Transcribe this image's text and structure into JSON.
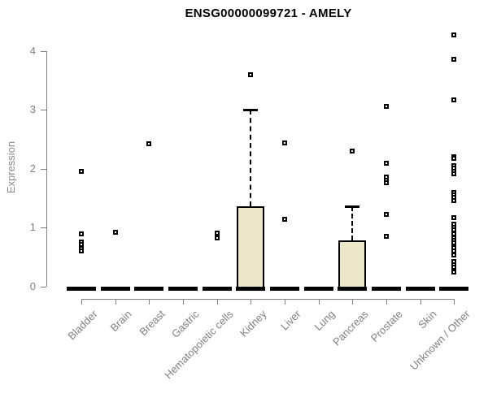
{
  "chart_data": {
    "type": "boxplot",
    "title": "ENSG00000099721 - AMELY",
    "ylabel": "Expression",
    "xlabel": "",
    "ylim": [
      0,
      4.3
    ],
    "yticks": [
      0,
      1,
      2,
      3,
      4
    ],
    "grid": false,
    "legend": false,
    "categories": [
      "Bladder",
      "Brain",
      "Breast",
      "Gastric",
      "Hematopoietic cells",
      "Kidney",
      "Liver",
      "Lung",
      "Pancreas",
      "Prostate",
      "Skin",
      "Unknown / Other"
    ],
    "series": [
      {
        "name": "Bladder",
        "median": 0,
        "q1": 0,
        "q3": 0,
        "whisker_high": 0,
        "outliers": [
          1.96,
          0.9,
          0.76,
          0.71,
          0.65,
          0.61
        ]
      },
      {
        "name": "Brain",
        "median": 0,
        "q1": 0,
        "q3": 0,
        "whisker_high": 0,
        "outliers": [
          0.92
        ]
      },
      {
        "name": "Breast",
        "median": 0,
        "q1": 0,
        "q3": 0,
        "whisker_high": 0,
        "outliers": [
          2.42
        ]
      },
      {
        "name": "Gastric",
        "median": 0,
        "q1": 0,
        "q3": 0,
        "whisker_high": 0,
        "outliers": []
      },
      {
        "name": "Hematopoietic cells",
        "median": 0,
        "q1": 0,
        "q3": 0,
        "whisker_high": 0,
        "outliers": [
          0.91,
          0.83
        ]
      },
      {
        "name": "Kidney",
        "median": 0,
        "q1": 0,
        "q3": 1.37,
        "whisker_high": 3.0,
        "outliers": [
          3.6
        ]
      },
      {
        "name": "Liver",
        "median": 0,
        "q1": 0,
        "q3": 0,
        "whisker_high": 0,
        "outliers": [
          2.44,
          1.14
        ]
      },
      {
        "name": "Lung",
        "median": 0,
        "q1": 0,
        "q3": 0,
        "whisker_high": 0,
        "outliers": []
      },
      {
        "name": "Pancreas",
        "median": 0,
        "q1": 0,
        "q3": 0.78,
        "whisker_high": 1.37,
        "outliers": [
          2.3
        ]
      },
      {
        "name": "Prostate",
        "median": 0,
        "q1": 0,
        "q3": 0,
        "whisker_high": 0,
        "outliers": [
          3.06,
          2.09,
          1.86,
          1.81,
          1.76,
          1.23,
          0.86
        ]
      },
      {
        "name": "Skin",
        "median": 0,
        "q1": 0,
        "q3": 0,
        "whisker_high": 0,
        "outliers": []
      },
      {
        "name": "Unknown / Other",
        "median": 0,
        "q1": 0,
        "q3": 0,
        "whisker_high": 0,
        "outliers": [
          4.27,
          3.86,
          3.17,
          2.21,
          2.17,
          2.05,
          2.01,
          1.96,
          1.91,
          1.6,
          1.56,
          1.51,
          1.46,
          1.17,
          1.06,
          1.01,
          0.97,
          0.9,
          0.83,
          0.79,
          0.74,
          0.66,
          0.6,
          0.54,
          0.43,
          0.37,
          0.33,
          0.25
        ]
      }
    ],
    "colors": {
      "box_fill": "#ECE7C9",
      "box_border": "#000000",
      "median": "#000000",
      "axis": "#808080",
      "tick_label": "#808080",
      "title": "#000000"
    }
  }
}
